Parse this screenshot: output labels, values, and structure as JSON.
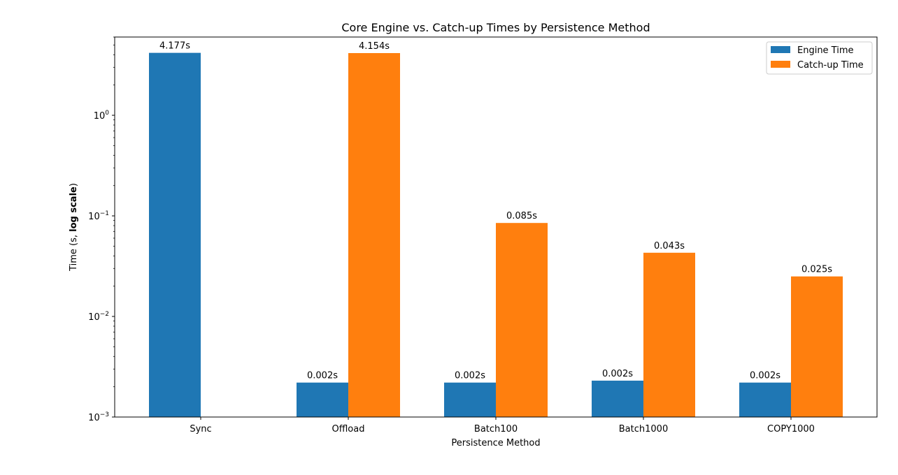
{
  "chart_data": {
    "type": "bar",
    "title": "Core Engine vs. Catch-up Times by Persistence Method",
    "xlabel": "Persistence Method",
    "ylabel_prefix": "Time (s, ",
    "ylabel_bold": "log scale",
    "ylabel_suffix": ")",
    "yscale": "log",
    "ylim": [
      0.001,
      6
    ],
    "categories": [
      "Sync",
      "Offload",
      "Batch100",
      "Batch1000",
      "COPY1000"
    ],
    "series": [
      {
        "name": "Engine Time",
        "color": "#1f77b4",
        "values": [
          4.177,
          0.0022,
          0.0022,
          0.0023,
          0.0022
        ],
        "labels": [
          "4.177s",
          "0.002s",
          "0.002s",
          "0.002s",
          "0.002s"
        ]
      },
      {
        "name": "Catch-up Time",
        "color": "#ff7f0e",
        "values": [
          null,
          4.154,
          0.085,
          0.043,
          0.025
        ],
        "labels": [
          null,
          "4.154s",
          "0.085s",
          "0.043s",
          "0.025s"
        ]
      }
    ],
    "yticks": [
      {
        "value": 0.001,
        "base": "10",
        "exp": "−3"
      },
      {
        "value": 0.01,
        "base": "10",
        "exp": "−2"
      },
      {
        "value": 0.1,
        "base": "10",
        "exp": "−1"
      },
      {
        "value": 1,
        "base": "10",
        "exp": "0"
      }
    ],
    "legend_position": "top-right",
    "grid": false
  }
}
